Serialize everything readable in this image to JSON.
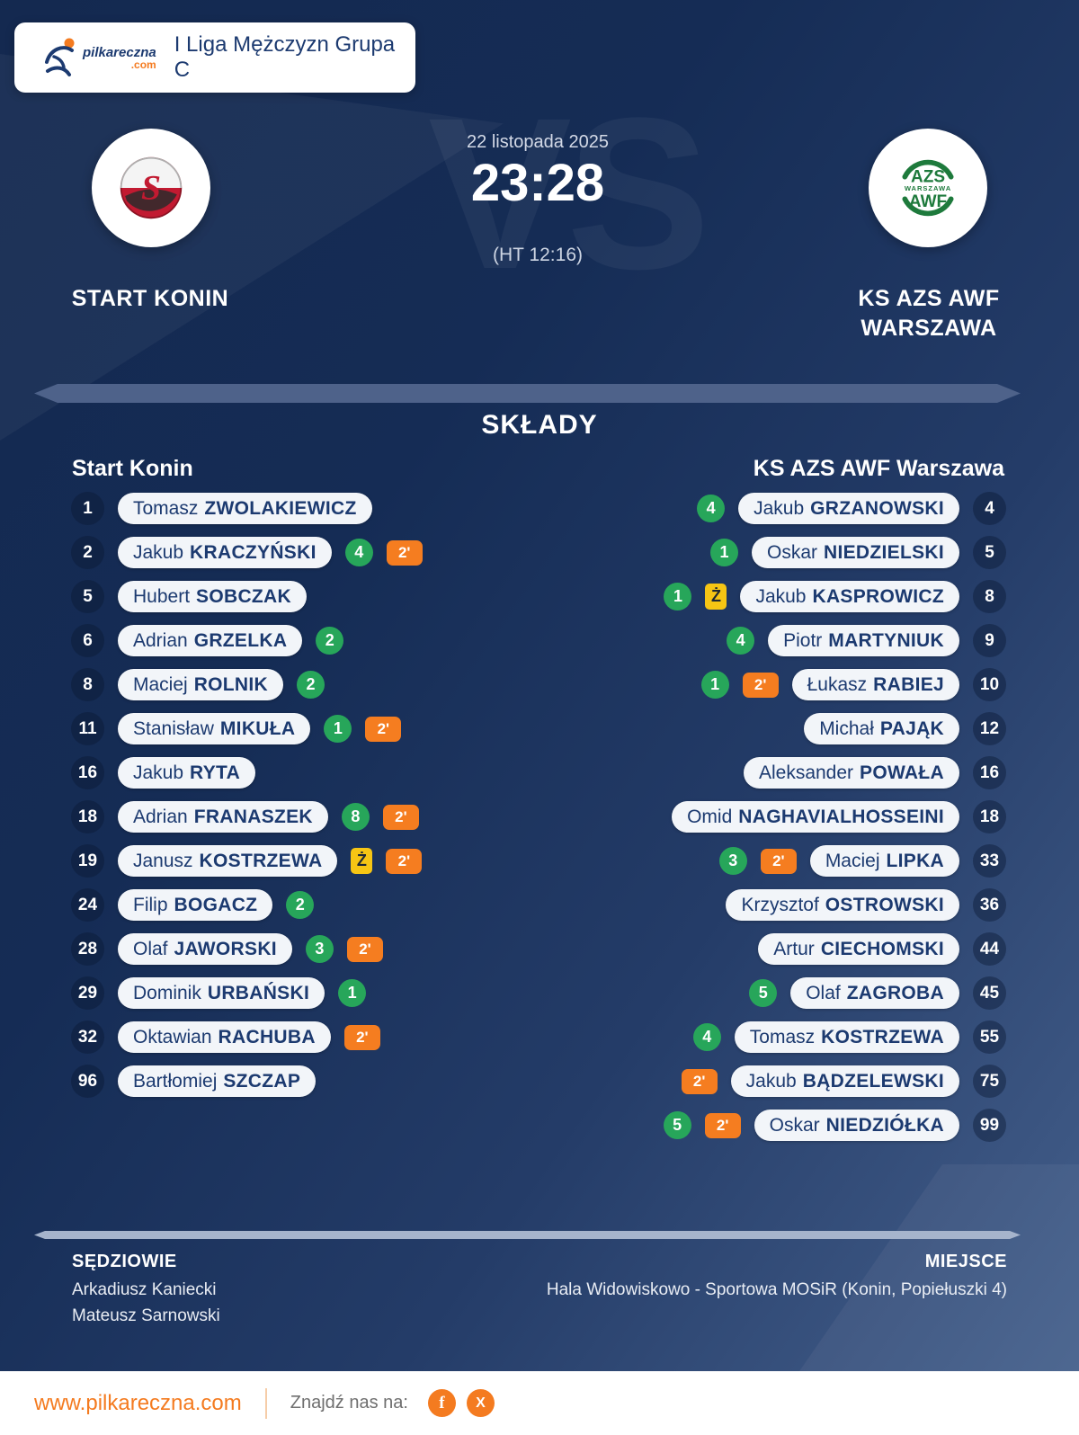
{
  "header": {
    "brand": {
      "name": "pilkareczna",
      "tld": ".com"
    },
    "league_title": "I Liga Mężczyzn Grupa C"
  },
  "match": {
    "date": "22 listopada 2025",
    "score": "23:28",
    "halftime": "(HT 12:16)",
    "vs_watermark": "VS",
    "home": {
      "name": "START KONIN",
      "logo_letter": "S"
    },
    "away": {
      "name_lines": [
        "KS AZS AWF",
        "WARSZAWA"
      ],
      "logo_lines": [
        "AZS",
        "WARSZAWA",
        "AWF"
      ]
    }
  },
  "lineups": {
    "section_title": "SKŁADY",
    "home_header": "Start Konin",
    "away_header": "KS AZS AWF Warszawa",
    "home_players": [
      {
        "number": "1",
        "first": "Tomasz",
        "last": "ZWOLAKIEWICZ",
        "goals": "",
        "yellow": "",
        "two_min": ""
      },
      {
        "number": "2",
        "first": "Jakub",
        "last": "KRACZYŃSKI",
        "goals": "4",
        "yellow": "",
        "two_min": "2'"
      },
      {
        "number": "5",
        "first": "Hubert",
        "last": "SOBCZAK",
        "goals": "",
        "yellow": "",
        "two_min": ""
      },
      {
        "number": "6",
        "first": "Adrian",
        "last": "GRZELKA",
        "goals": "2",
        "yellow": "",
        "two_min": ""
      },
      {
        "number": "8",
        "first": "Maciej",
        "last": "ROLNIK",
        "goals": "2",
        "yellow": "",
        "two_min": ""
      },
      {
        "number": "11",
        "first": "Stanisław",
        "last": "MIKUŁA",
        "goals": "1",
        "yellow": "",
        "two_min": "2'"
      },
      {
        "number": "16",
        "first": "Jakub",
        "last": "RYTA",
        "goals": "",
        "yellow": "",
        "two_min": ""
      },
      {
        "number": "18",
        "first": "Adrian",
        "last": "FRANASZEK",
        "goals": "8",
        "yellow": "",
        "two_min": "2'"
      },
      {
        "number": "19",
        "first": "Janusz",
        "last": "KOSTRZEWA",
        "goals": "",
        "yellow": "Ż",
        "two_min": "2'"
      },
      {
        "number": "24",
        "first": "Filip",
        "last": "BOGACZ",
        "goals": "2",
        "yellow": "",
        "two_min": ""
      },
      {
        "number": "28",
        "first": "Olaf",
        "last": "JAWORSKI",
        "goals": "3",
        "yellow": "",
        "two_min": "2'"
      },
      {
        "number": "29",
        "first": "Dominik",
        "last": "URBAŃSKI",
        "goals": "1",
        "yellow": "",
        "two_min": ""
      },
      {
        "number": "32",
        "first": "Oktawian",
        "last": "RACHUBA",
        "goals": "",
        "yellow": "",
        "two_min": "2'"
      },
      {
        "number": "96",
        "first": "Bartłomiej",
        "last": "SZCZAP",
        "goals": "",
        "yellow": "",
        "two_min": ""
      }
    ],
    "away_players": [
      {
        "number": "4",
        "first": "Jakub",
        "last": "GRZANOWSKI",
        "goals": "4",
        "yellow": "",
        "two_min": ""
      },
      {
        "number": "5",
        "first": "Oskar",
        "last": "NIEDZIELSKI",
        "goals": "1",
        "yellow": "",
        "two_min": ""
      },
      {
        "number": "8",
        "first": "Jakub",
        "last": "KASPROWICZ",
        "goals": "1",
        "yellow": "Ż",
        "two_min": ""
      },
      {
        "number": "9",
        "first": "Piotr",
        "last": "MARTYNIUK",
        "goals": "4",
        "yellow": "",
        "two_min": ""
      },
      {
        "number": "10",
        "first": "Łukasz",
        "last": "RABIEJ",
        "goals": "1",
        "yellow": "",
        "two_min": "2'"
      },
      {
        "number": "12",
        "first": "Michał",
        "last": "PAJĄK",
        "goals": "",
        "yellow": "",
        "two_min": ""
      },
      {
        "number": "16",
        "first": "Aleksander",
        "last": "POWAŁA",
        "goals": "",
        "yellow": "",
        "two_min": ""
      },
      {
        "number": "18",
        "first": "Omid",
        "last": "NAGHAVIALHOSSEINI",
        "goals": "",
        "yellow": "",
        "two_min": ""
      },
      {
        "number": "33",
        "first": "Maciej",
        "last": "LIPKA",
        "goals": "3",
        "yellow": "",
        "two_min": "2'"
      },
      {
        "number": "36",
        "first": "Krzysztof",
        "last": "OSTROWSKI",
        "goals": "",
        "yellow": "",
        "two_min": ""
      },
      {
        "number": "44",
        "first": "Artur",
        "last": "CIECHOMSKI",
        "goals": "",
        "yellow": "",
        "two_min": ""
      },
      {
        "number": "45",
        "first": "Olaf",
        "last": "ZAGROBA",
        "goals": "5",
        "yellow": "",
        "two_min": ""
      },
      {
        "number": "55",
        "first": "Tomasz",
        "last": "KOSTRZEWA",
        "goals": "4",
        "yellow": "",
        "two_min": ""
      },
      {
        "number": "75",
        "first": "Jakub",
        "last": "BĄDZELEWSKI",
        "goals": "",
        "yellow": "",
        "two_min": "2'"
      },
      {
        "number": "99",
        "first": "Oskar",
        "last": "NIEDZIÓŁKA",
        "goals": "5",
        "yellow": "",
        "two_min": "2'"
      }
    ]
  },
  "details": {
    "referees_label": "SĘDZIOWIE",
    "referees": [
      "Arkadiusz Kaniecki",
      "Mateusz Sarnowski"
    ],
    "venue_label": "MIEJSCE",
    "venue": "Hala Widowiskowo - Sportowa MOSiR (Konin, Popiełuszki 4)"
  },
  "footer": {
    "website": "www.pilkareczna.com",
    "find_us_label": "Znajdź nas na:",
    "social": [
      {
        "name": "facebook",
        "glyph": "f"
      },
      {
        "name": "x",
        "glyph": "X"
      }
    ]
  },
  "colors": {
    "goal_green": "#27a65a",
    "suspension_orange": "#f57d20",
    "yellow_card": "#f6c514",
    "brand_orange": "#f47b20",
    "navy_text": "#1c3a70"
  }
}
